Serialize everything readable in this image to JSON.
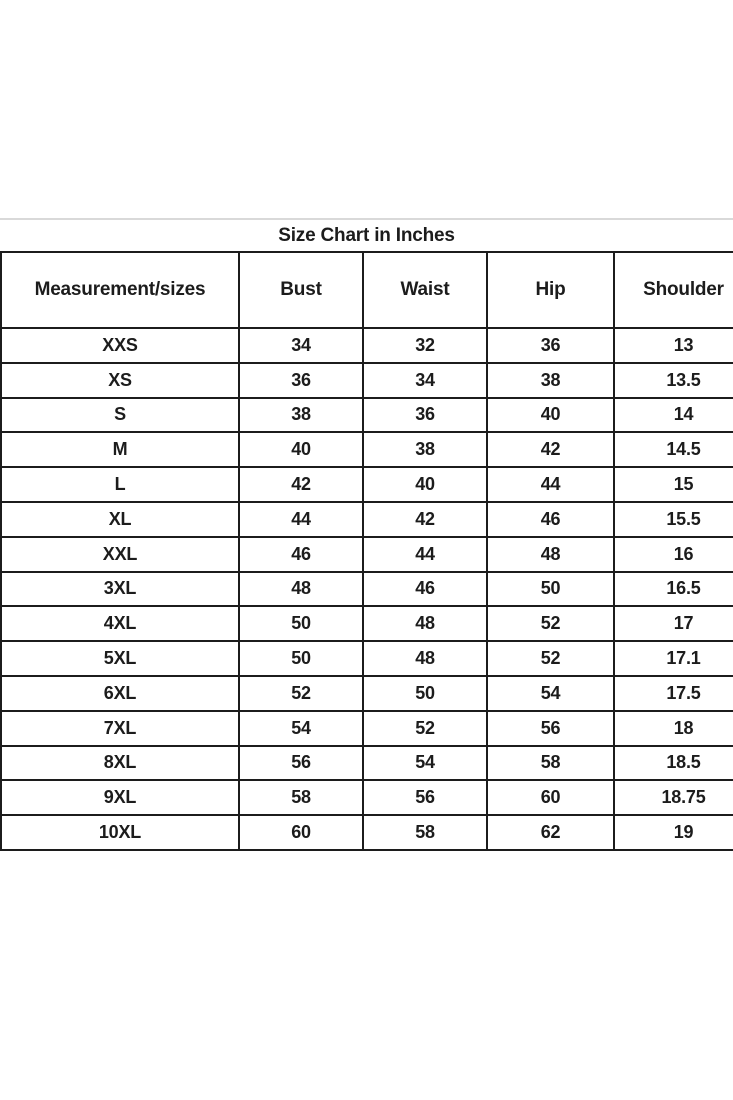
{
  "chart_data": {
    "type": "table",
    "title": "Size Chart in Inches",
    "columns": [
      "Measurement/sizes",
      "Bust",
      "Waist",
      "Hip",
      "Shoulder"
    ],
    "rows": [
      [
        "XXS",
        "34",
        "32",
        "36",
        "13"
      ],
      [
        "XS",
        "36",
        "34",
        "38",
        "13.5"
      ],
      [
        "S",
        "38",
        "36",
        "40",
        "14"
      ],
      [
        "M",
        "40",
        "38",
        "42",
        "14.5"
      ],
      [
        "L",
        "42",
        "40",
        "44",
        "15"
      ],
      [
        "XL",
        "44",
        "42",
        "46",
        "15.5"
      ],
      [
        "XXL",
        "46",
        "44",
        "48",
        "16"
      ],
      [
        "3XL",
        "48",
        "46",
        "50",
        "16.5"
      ],
      [
        "4XL",
        "50",
        "48",
        "52",
        "17"
      ],
      [
        "5XL",
        "50",
        "48",
        "52",
        "17.1"
      ],
      [
        "6XL",
        "52",
        "50",
        "54",
        "17.5"
      ],
      [
        "7XL",
        "54",
        "52",
        "56",
        "18"
      ],
      [
        "8XL",
        "56",
        "54",
        "58",
        "18.5"
      ],
      [
        "9XL",
        "58",
        "56",
        "60",
        "18.75"
      ],
      [
        "10XL",
        "60",
        "58",
        "62",
        "19"
      ]
    ],
    "layout": {
      "units": "inches",
      "grid": "on",
      "border_color": "#1c1c1c",
      "text_color": "#1c1c1c",
      "background_color": "#ffffff",
      "top_rule_color": "#d9d9d9",
      "right_edge": "clipped"
    }
  }
}
